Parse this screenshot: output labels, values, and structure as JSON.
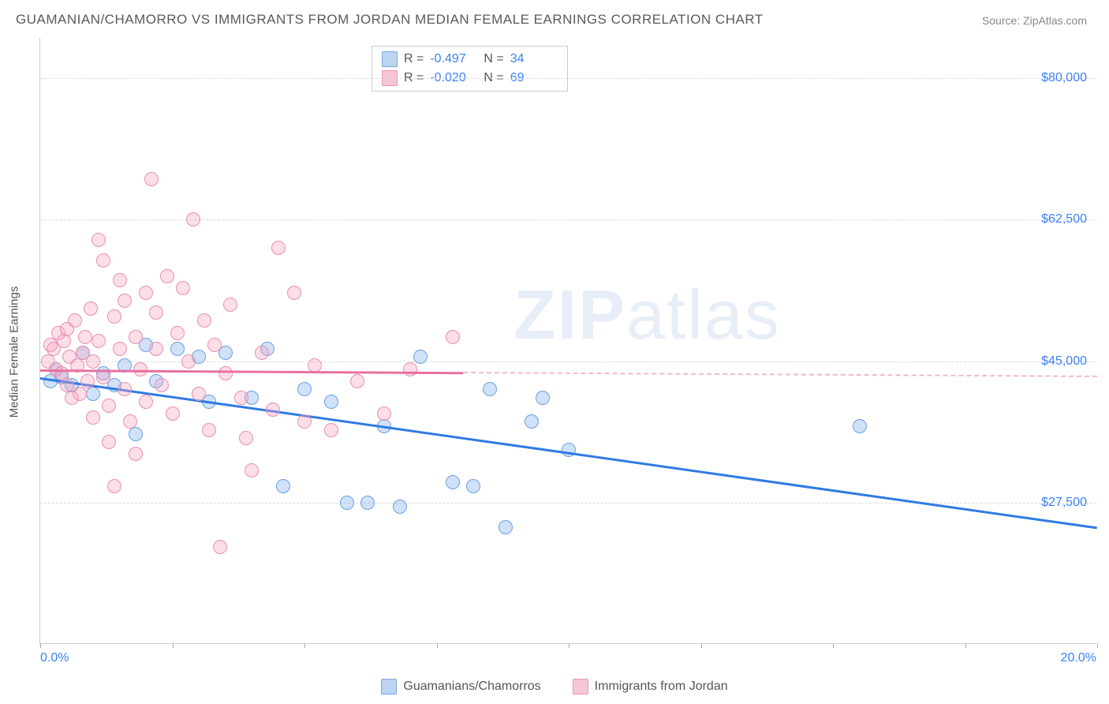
{
  "title": "GUAMANIAN/CHAMORRO VS IMMIGRANTS FROM JORDAN MEDIAN FEMALE EARNINGS CORRELATION CHART",
  "source_label": "Source: ZipAtlas.com",
  "y_axis_title": "Median Female Earnings",
  "watermark_a": "ZIP",
  "watermark_b": "atlas",
  "chart": {
    "type": "scatter",
    "xlim": [
      0,
      20
    ],
    "ylim": [
      10000,
      85000
    ],
    "x_ticks": [
      0,
      2.5,
      5,
      7.5,
      10,
      12.5,
      15,
      17.5,
      20
    ],
    "x_tick_labels": {
      "0": "0.0%",
      "20": "20.0%"
    },
    "y_grid": [
      27500,
      45000,
      62500,
      80000
    ],
    "y_grid_labels": [
      "$27,500",
      "$45,000",
      "$62,500",
      "$80,000"
    ],
    "background_color": "#ffffff",
    "grid_color": "#dddddd",
    "axis_color": "#cccccc",
    "label_color": "#3b82f6",
    "marker_radius": 9,
    "marker_border_width": 1.5,
    "series": [
      {
        "id": "guam",
        "name": "Guamanians/Chamorros",
        "fill": "rgba(120,170,235,0.35)",
        "stroke": "#6aa0e0",
        "swatch_fill": "#bcd4f2",
        "swatch_stroke": "#7aa9e2",
        "trend_color": "#2f7ae5",
        "trend_dash_color": "#2f7ae5",
        "R": "-0.497",
        "N": "34",
        "trend": {
          "x1": 0,
          "y1": 43000,
          "x2": 20,
          "y2": 24500,
          "solid_until_x": 20
        },
        "points": [
          {
            "x": 0.2,
            "y": 42500
          },
          {
            "x": 0.3,
            "y": 44000
          },
          {
            "x": 0.4,
            "y": 43000
          },
          {
            "x": 0.6,
            "y": 42000
          },
          {
            "x": 0.8,
            "y": 46000
          },
          {
            "x": 1.0,
            "y": 41000
          },
          {
            "x": 1.2,
            "y": 43500
          },
          {
            "x": 1.4,
            "y": 42000
          },
          {
            "x": 1.6,
            "y": 44500
          },
          {
            "x": 1.8,
            "y": 36000
          },
          {
            "x": 2.0,
            "y": 47000
          },
          {
            "x": 2.2,
            "y": 42500
          },
          {
            "x": 2.6,
            "y": 46500
          },
          {
            "x": 3.0,
            "y": 45500
          },
          {
            "x": 3.2,
            "y": 40000
          },
          {
            "x": 3.5,
            "y": 46000
          },
          {
            "x": 4.0,
            "y": 40500
          },
          {
            "x": 4.3,
            "y": 46500
          },
          {
            "x": 4.6,
            "y": 29500
          },
          {
            "x": 5.0,
            "y": 41500
          },
          {
            "x": 5.5,
            "y": 40000
          },
          {
            "x": 5.8,
            "y": 27500
          },
          {
            "x": 6.2,
            "y": 27500
          },
          {
            "x": 6.5,
            "y": 37000
          },
          {
            "x": 6.8,
            "y": 27000
          },
          {
            "x": 7.2,
            "y": 45500
          },
          {
            "x": 7.8,
            "y": 30000
          },
          {
            "x": 8.2,
            "y": 29500
          },
          {
            "x": 8.5,
            "y": 41500
          },
          {
            "x": 8.8,
            "y": 24500
          },
          {
            "x": 9.3,
            "y": 37500
          },
          {
            "x": 9.5,
            "y": 40500
          },
          {
            "x": 10.0,
            "y": 34000
          },
          {
            "x": 15.5,
            "y": 37000
          }
        ]
      },
      {
        "id": "jordan",
        "name": "Immigrants from Jordan",
        "fill": "rgba(245,160,190,0.35)",
        "stroke": "#e88fb0",
        "swatch_fill": "#f7c6d6",
        "swatch_stroke": "#e996b3",
        "trend_color": "#e870a0",
        "trend_dash_color": "#f0b8cc",
        "R": "-0.020",
        "N": "69",
        "trend": {
          "x1": 0,
          "y1": 44000,
          "x2": 20,
          "y2": 43200,
          "solid_until_x": 8
        },
        "points": [
          {
            "x": 0.15,
            "y": 45000
          },
          {
            "x": 0.2,
            "y": 47000
          },
          {
            "x": 0.25,
            "y": 46500
          },
          {
            "x": 0.3,
            "y": 44000
          },
          {
            "x": 0.35,
            "y": 48500
          },
          {
            "x": 0.4,
            "y": 43500
          },
          {
            "x": 0.45,
            "y": 47500
          },
          {
            "x": 0.5,
            "y": 42000
          },
          {
            "x": 0.5,
            "y": 49000
          },
          {
            "x": 0.55,
            "y": 45500
          },
          {
            "x": 0.6,
            "y": 40500
          },
          {
            "x": 0.65,
            "y": 50000
          },
          {
            "x": 0.7,
            "y": 44500
          },
          {
            "x": 0.75,
            "y": 41000
          },
          {
            "x": 0.8,
            "y": 46000
          },
          {
            "x": 0.85,
            "y": 48000
          },
          {
            "x": 0.9,
            "y": 42500
          },
          {
            "x": 0.95,
            "y": 51500
          },
          {
            "x": 1.0,
            "y": 45000
          },
          {
            "x": 1.0,
            "y": 38000
          },
          {
            "x": 1.1,
            "y": 47500
          },
          {
            "x": 1.1,
            "y": 60000
          },
          {
            "x": 1.2,
            "y": 43000
          },
          {
            "x": 1.2,
            "y": 57500
          },
          {
            "x": 1.3,
            "y": 39500
          },
          {
            "x": 1.3,
            "y": 35000
          },
          {
            "x": 1.4,
            "y": 50500
          },
          {
            "x": 1.4,
            "y": 29500
          },
          {
            "x": 1.5,
            "y": 46500
          },
          {
            "x": 1.5,
            "y": 55000
          },
          {
            "x": 1.6,
            "y": 41500
          },
          {
            "x": 1.6,
            "y": 52500
          },
          {
            "x": 1.7,
            "y": 37500
          },
          {
            "x": 1.8,
            "y": 48000
          },
          {
            "x": 1.8,
            "y": 33500
          },
          {
            "x": 1.9,
            "y": 44000
          },
          {
            "x": 2.0,
            "y": 53500
          },
          {
            "x": 2.0,
            "y": 40000
          },
          {
            "x": 2.1,
            "y": 67500
          },
          {
            "x": 2.2,
            "y": 46500
          },
          {
            "x": 2.2,
            "y": 51000
          },
          {
            "x": 2.3,
            "y": 42000
          },
          {
            "x": 2.4,
            "y": 55500
          },
          {
            "x": 2.5,
            "y": 38500
          },
          {
            "x": 2.6,
            "y": 48500
          },
          {
            "x": 2.7,
            "y": 54000
          },
          {
            "x": 2.8,
            "y": 45000
          },
          {
            "x": 2.9,
            "y": 62500
          },
          {
            "x": 3.0,
            "y": 41000
          },
          {
            "x": 3.1,
            "y": 50000
          },
          {
            "x": 3.2,
            "y": 36500
          },
          {
            "x": 3.3,
            "y": 47000
          },
          {
            "x": 3.4,
            "y": 22000
          },
          {
            "x": 3.5,
            "y": 43500
          },
          {
            "x": 3.6,
            "y": 52000
          },
          {
            "x": 3.8,
            "y": 40500
          },
          {
            "x": 3.9,
            "y": 35500
          },
          {
            "x": 4.0,
            "y": 31500
          },
          {
            "x": 4.2,
            "y": 46000
          },
          {
            "x": 4.4,
            "y": 39000
          },
          {
            "x": 4.5,
            "y": 59000
          },
          {
            "x": 4.8,
            "y": 53500
          },
          {
            "x": 5.0,
            "y": 37500
          },
          {
            "x": 5.2,
            "y": 44500
          },
          {
            "x": 5.5,
            "y": 36500
          },
          {
            "x": 6.0,
            "y": 42500
          },
          {
            "x": 6.5,
            "y": 38500
          },
          {
            "x": 7.0,
            "y": 44000
          },
          {
            "x": 7.8,
            "y": 48000
          }
        ]
      }
    ]
  },
  "legend": {
    "series1_label": "Guamanians/Chamorros",
    "series2_label": "Immigrants from Jordan"
  }
}
